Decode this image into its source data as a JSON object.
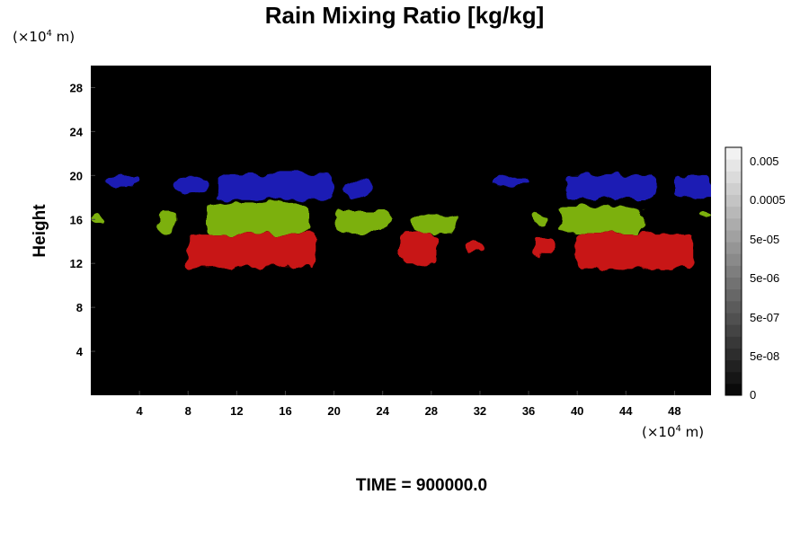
{
  "chart_data": {
    "type": "heatmap",
    "title": "Rain Mixing Ratio [kg/kg]",
    "xlabel": "",
    "ylabel": "Height",
    "x_unit_label": "(×10",
    "x_unit_exp": "4",
    "x_unit_suffix": " m)",
    "y_unit_label": "(×10",
    "y_unit_exp": "4",
    "y_unit_suffix": " m)",
    "xlim": [
      0,
      51
    ],
    "ylim": [
      0,
      30
    ],
    "x_ticks": [
      4,
      8,
      12,
      16,
      20,
      24,
      28,
      32,
      36,
      40,
      44,
      48
    ],
    "y_ticks": [
      4,
      8,
      12,
      16,
      20,
      24,
      28
    ],
    "background_color": "#000000",
    "colorbar": {
      "labels": [
        "0.005",
        "0.0005",
        "5e-05",
        "5e-06",
        "5e-07",
        "5e-08",
        "0"
      ],
      "levels": 21
    },
    "layers": [
      {
        "band": "upper",
        "color": "#1a1ab4",
        "z_range": [
          17.8,
          20.2
        ],
        "regions": [
          {
            "x": [
              1.2,
              4.0
            ],
            "z": [
              19.0,
              20.0
            ]
          },
          {
            "x": [
              7.0,
              9.5
            ],
            "z": [
              18.5,
              19.8
            ]
          },
          {
            "x": [
              10.5,
              20.0
            ],
            "z": [
              17.8,
              20.2
            ]
          },
          {
            "x": [
              21.0,
              23.0
            ],
            "z": [
              18.0,
              19.6
            ]
          },
          {
            "x": [
              33.0,
              36.0
            ],
            "z": [
              19.2,
              19.8
            ]
          },
          {
            "x": [
              39.0,
              46.5
            ],
            "z": [
              17.9,
              20.0
            ]
          },
          {
            "x": [
              48.0,
              51.0
            ],
            "z": [
              18.0,
              20.0
            ]
          }
        ]
      },
      {
        "band": "middle",
        "color": "#7cb00a",
        "z_range": [
          14.7,
          17.5
        ],
        "regions": [
          {
            "x": [
              0.2,
              1.2
            ],
            "z": [
              15.5,
              16.3
            ]
          },
          {
            "x": [
              5.5,
              7.0
            ],
            "z": [
              14.8,
              16.8
            ]
          },
          {
            "x": [
              9.5,
              18.0
            ],
            "z": [
              14.7,
              17.5
            ]
          },
          {
            "x": [
              20.0,
              24.5
            ],
            "z": [
              14.8,
              16.8
            ]
          },
          {
            "x": [
              26.5,
              30.0
            ],
            "z": [
              14.7,
              16.5
            ]
          },
          {
            "x": [
              36.5,
              37.5
            ],
            "z": [
              15.5,
              16.5
            ]
          },
          {
            "x": [
              38.5,
              45.5
            ],
            "z": [
              14.7,
              17.2
            ]
          },
          {
            "x": [
              50.0,
              51.0
            ],
            "z": [
              16.0,
              16.6
            ]
          }
        ]
      },
      {
        "band": "lower",
        "color": "#c81414",
        "z_range": [
          11.5,
          14.7
        ],
        "regions": [
          {
            "x": [
              8.0,
              18.5
            ],
            "z": [
              11.6,
              14.7
            ]
          },
          {
            "x": [
              25.5,
              28.5
            ],
            "z": [
              12.0,
              14.7
            ]
          },
          {
            "x": [
              31.0,
              32.3
            ],
            "z": [
              13.0,
              13.9
            ]
          },
          {
            "x": [
              36.5,
              38.0
            ],
            "z": [
              12.8,
              14.5
            ]
          },
          {
            "x": [
              40.0,
              49.5
            ],
            "z": [
              11.5,
              14.7
            ]
          }
        ]
      }
    ]
  },
  "footer": {
    "time_label": "TIME = 900000.0"
  }
}
